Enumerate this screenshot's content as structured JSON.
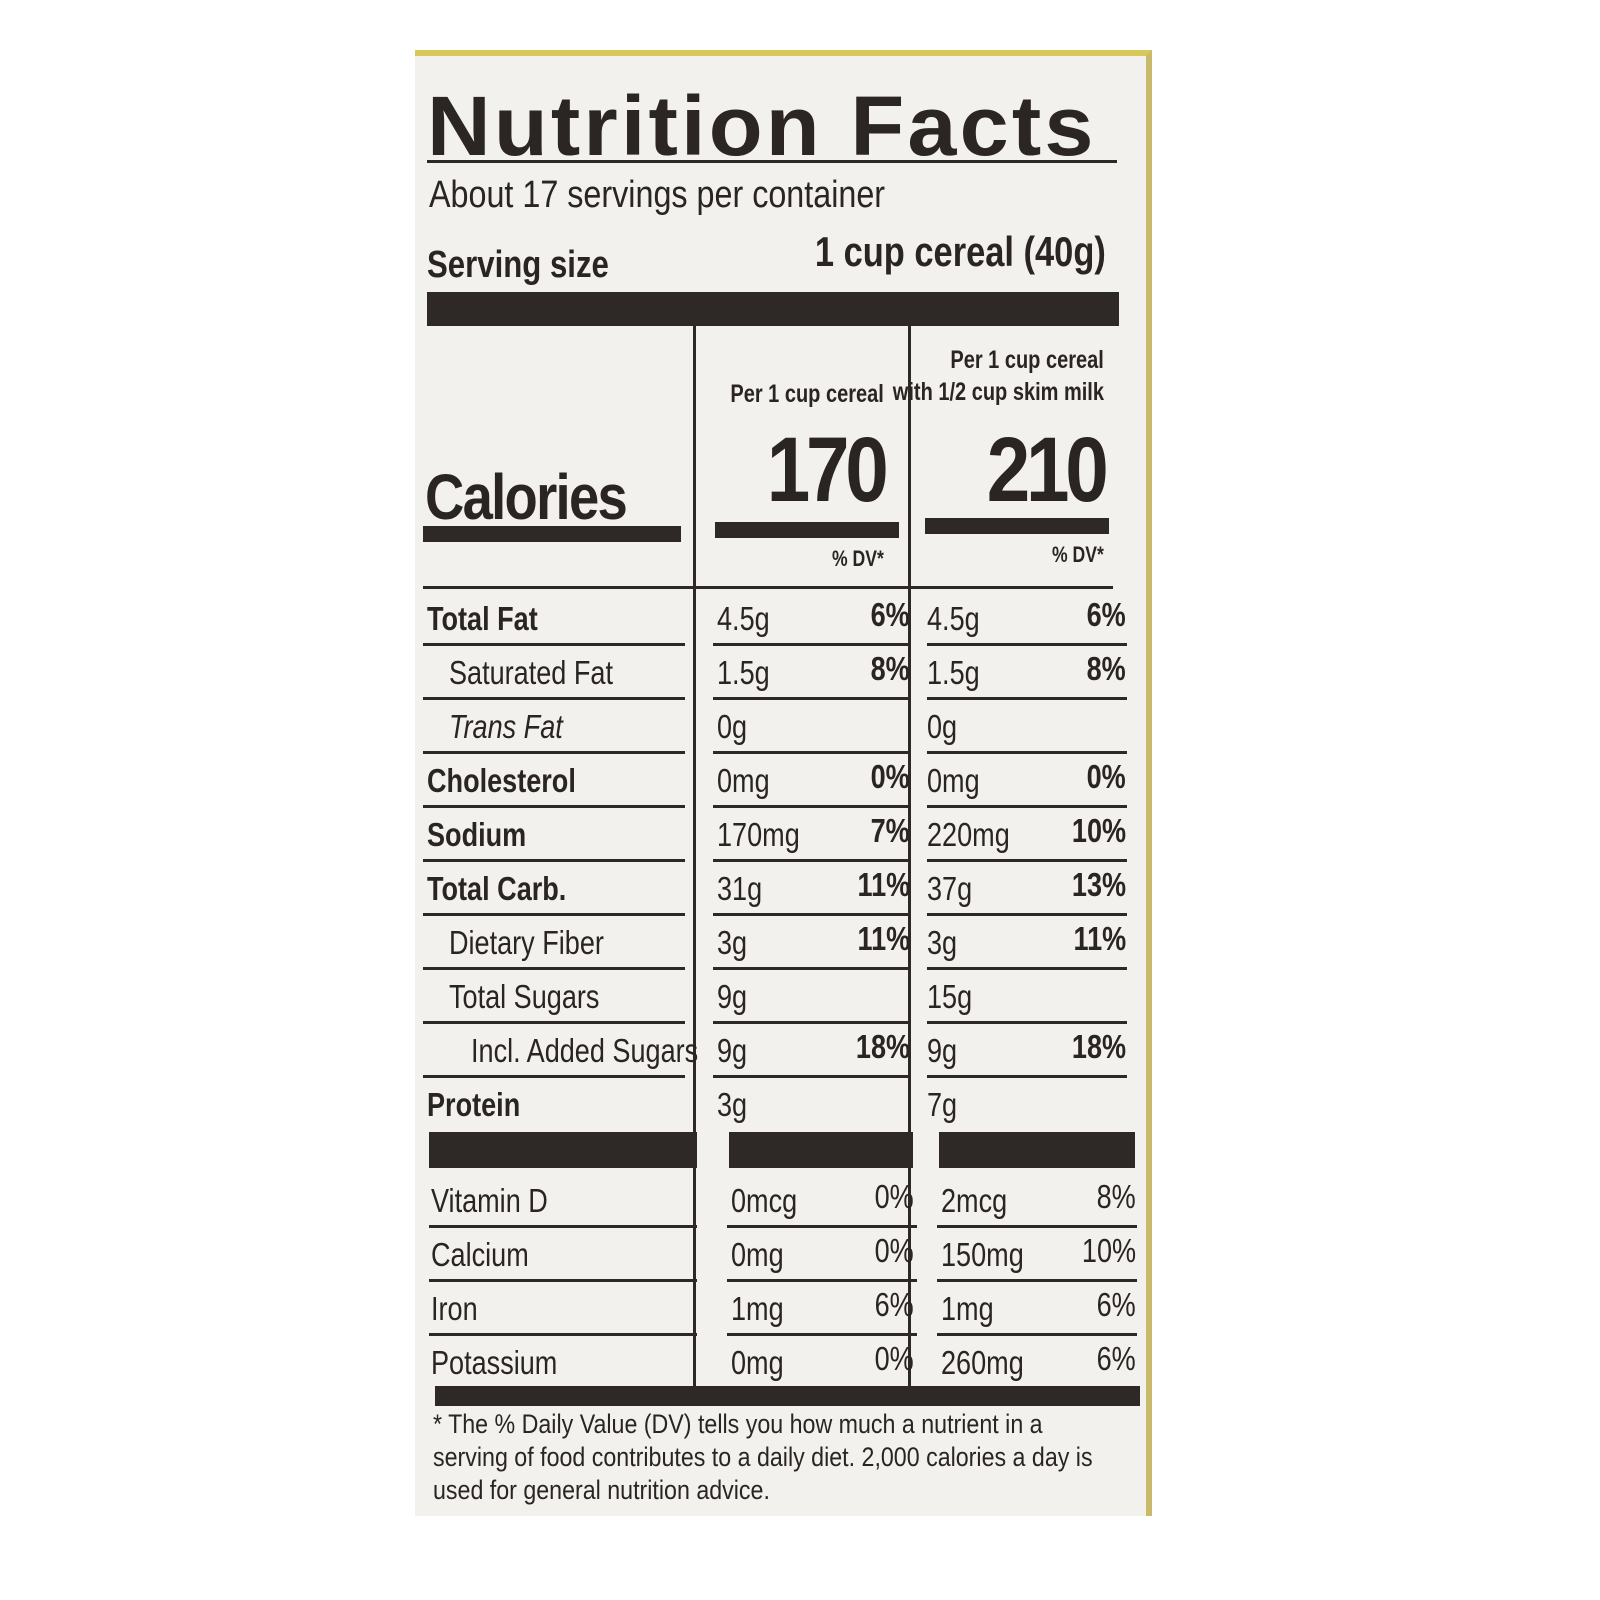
{
  "title": "Nutrition Facts",
  "servings_per_container": "About 17 servings per container",
  "serving_size_label": "Serving size",
  "serving_size_value": "1 cup cereal (40g)",
  "columns": [
    {
      "header_line1": "",
      "header_line2": "Per 1 cup cereal",
      "calories": "170",
      "dv_header": "% DV*"
    },
    {
      "header_line1": "Per 1 cup cereal",
      "header_line2": "with 1/2 cup skim milk",
      "calories": "210",
      "dv_header": "% DV*"
    }
  ],
  "calories_label": "Calories",
  "nutrients": [
    {
      "name": "Total Fat",
      "bold": true,
      "indent": 0,
      "c1_amount": "4.5g",
      "c1_dv": "6%",
      "c2_amount": "4.5g",
      "c2_dv": "6%"
    },
    {
      "name": "Saturated Fat",
      "bold": false,
      "indent": 1,
      "c1_amount": "1.5g",
      "c1_dv": "8%",
      "c2_amount": "1.5g",
      "c2_dv": "8%"
    },
    {
      "name": "Trans Fat",
      "bold": false,
      "indent": 1,
      "italic_prefix": "Trans",
      "c1_amount": "0g",
      "c1_dv": "",
      "c2_amount": "0g",
      "c2_dv": ""
    },
    {
      "name": "Cholesterol",
      "bold": true,
      "indent": 0,
      "c1_amount": "0mg",
      "c1_dv": "0%",
      "c2_amount": "0mg",
      "c2_dv": "0%"
    },
    {
      "name": "Sodium",
      "bold": true,
      "indent": 0,
      "c1_amount": "170mg",
      "c1_dv": "7%",
      "c2_amount": "220mg",
      "c2_dv": "10%"
    },
    {
      "name": "Total Carb.",
      "bold": true,
      "indent": 0,
      "c1_amount": "31g",
      "c1_dv": "11%",
      "c2_amount": "37g",
      "c2_dv": "13%"
    },
    {
      "name": "Dietary Fiber",
      "bold": false,
      "indent": 1,
      "c1_amount": "3g",
      "c1_dv": "11%",
      "c2_amount": "3g",
      "c2_dv": "11%"
    },
    {
      "name": "Total Sugars",
      "bold": false,
      "indent": 1,
      "c1_amount": "9g",
      "c1_dv": "",
      "c2_amount": "15g",
      "c2_dv": ""
    },
    {
      "name": "Incl. Added Sugars",
      "bold": false,
      "indent": 2,
      "c1_amount": "9g",
      "c1_dv": "18%",
      "c2_amount": "9g",
      "c2_dv": "18%"
    },
    {
      "name": "Protein",
      "bold": true,
      "indent": 0,
      "c1_amount": "3g",
      "c1_dv": "",
      "c2_amount": "7g",
      "c2_dv": ""
    }
  ],
  "vitamins": [
    {
      "name": "Vitamin D",
      "c1_amount": "0mcg",
      "c1_dv": "0%",
      "c2_amount": "2mcg",
      "c2_dv": "8%"
    },
    {
      "name": "Calcium",
      "c1_amount": "0mg",
      "c1_dv": "0%",
      "c2_amount": "150mg",
      "c2_dv": "10%"
    },
    {
      "name": "Iron",
      "c1_amount": "1mg",
      "c1_dv": "6%",
      "c2_amount": "1mg",
      "c2_dv": "6%"
    },
    {
      "name": "Potassium",
      "c1_amount": "0mg",
      "c1_dv": "0%",
      "c2_amount": "260mg",
      "c2_dv": "6%"
    }
  ],
  "footnote": "* The % Daily Value (DV) tells you how much a nutrient in a serving of food contributes to a daily diet. 2,000 calories a day is used for general nutrition advice.",
  "colors": {
    "ink": "#2e2926",
    "paper": "#f3f1ed",
    "package_edge": "#d8c85a"
  }
}
